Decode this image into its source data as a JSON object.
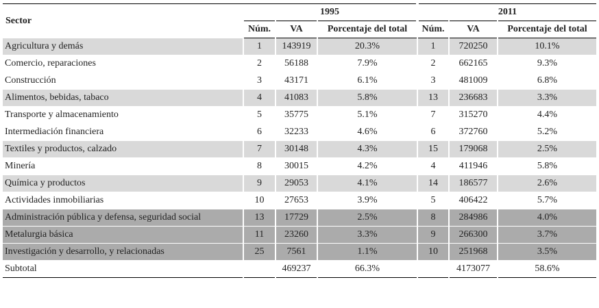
{
  "table": {
    "sector_header": "Sector",
    "groups": [
      "1995",
      "2011"
    ],
    "subheaders": [
      "Núm.",
      "VA",
      "Porcentaje del total",
      "Núm.",
      "VA",
      "Porcentaje del total"
    ],
    "rows": [
      [
        "Agricultura y demás",
        1,
        143919,
        "20.3%",
        1,
        720250,
        "10.1%"
      ],
      [
        "Comercio, reparaciones",
        2,
        56188,
        "7.9%",
        2,
        662165,
        "9.3%"
      ],
      [
        "Construcción",
        3,
        43171,
        "6.1%",
        3,
        481009,
        "6.8%"
      ],
      [
        "Alimentos, bebidas, tabaco",
        4,
        41083,
        "5.8%",
        13,
        236683,
        "3.3%"
      ],
      [
        "Transporte y almacenamiento",
        5,
        35775,
        "5.1%",
        7,
        315270,
        "4.4%"
      ],
      [
        "Intermediación financiera",
        6,
        32233,
        "4.6%",
        6,
        372760,
        "5.2%"
      ],
      [
        "Textiles y productos, calzado",
        7,
        30148,
        "4.3%",
        15,
        179068,
        "2.5%"
      ],
      [
        "Minería",
        8,
        30015,
        "4.2%",
        4,
        411946,
        "5.8%"
      ],
      [
        "Química y productos",
        9,
        29053,
        "4.1%",
        14,
        186577,
        "2.6%"
      ],
      [
        "Actividades inmobiliarias",
        10,
        27653,
        "3.9%",
        5,
        406422,
        "5.7%"
      ],
      [
        "Administración pública y defensa, seguridad social",
        13,
        17729,
        "2.5%",
        8,
        284986,
        "4.0%"
      ],
      [
        "Metalurgia básica",
        11,
        23260,
        "3.3%",
        9,
        266300,
        "3.7%"
      ],
      [
        "Investigación y desarrollo, y relacionadas",
        25,
        7561,
        "1.1%",
        10,
        251968,
        "3.5%"
      ]
    ],
    "subtotal": [
      "Subtotal",
      null,
      469237,
      "66.3%",
      null,
      4173077,
      "58.6%"
    ]
  }
}
